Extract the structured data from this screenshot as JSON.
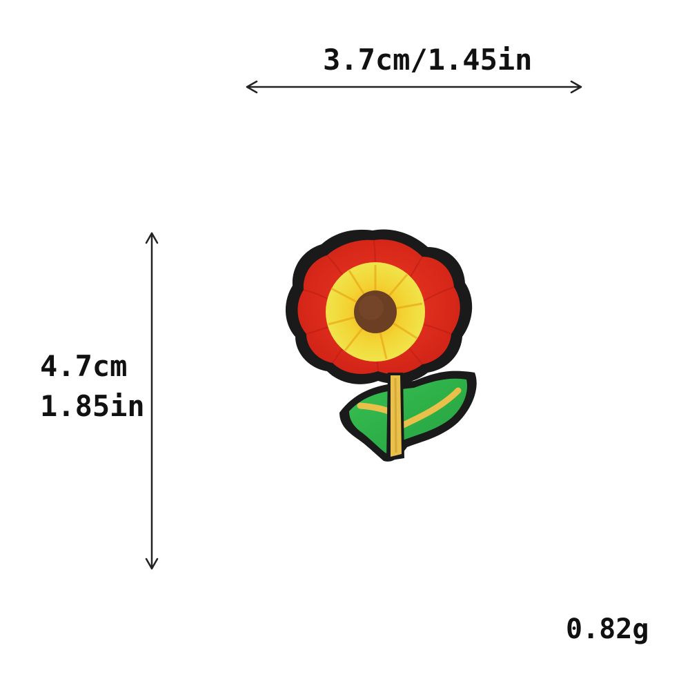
{
  "dimensions": {
    "width_label": "3.7cm/1.45in",
    "height_label_cm": "4.7cm",
    "height_label_in": "1.85in",
    "weight_label": "0.82g"
  },
  "patch": {
    "subject": "flower-icon",
    "colors": {
      "border": "#1a1a1a",
      "petals": "#e0281e",
      "petal_shade": "#c41f17",
      "ring": "#f0e030",
      "ring_inner": "#f5b316",
      "center": "#6b3f24",
      "stem": "#e8c04a",
      "leaf": "#2fb04a",
      "leaf_dark": "#1f8f38"
    }
  },
  "arrows": {
    "color": "#222222"
  }
}
